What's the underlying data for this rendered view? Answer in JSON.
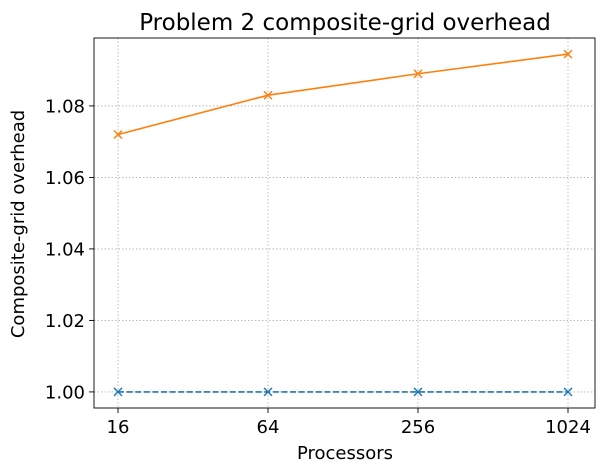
{
  "chart_data": {
    "type": "line",
    "title": "Problem 2 composite-grid overhead",
    "xlabel": "Processors",
    "ylabel": "Composite-grid overhead",
    "x_scale": "log2",
    "x": [
      16,
      64,
      256,
      1024
    ],
    "x_tick_labels": [
      "16",
      "64",
      "256",
      "1024"
    ],
    "y_ticks": [
      1.0,
      1.02,
      1.04,
      1.06,
      1.08
    ],
    "y_tick_labels": [
      "1.00",
      "1.02",
      "1.04",
      "1.06",
      "1.08"
    ],
    "ylim": [
      0.9955,
      1.099
    ],
    "grid": true,
    "series": [
      {
        "values": [
          1.0,
          1.0,
          1.0,
          1.0
        ],
        "color": "#1f77b4",
        "linestyle": "dashed",
        "marker": "x"
      },
      {
        "values": [
          1.072,
          1.083,
          1.089,
          1.0945
        ],
        "color": "#ff7f0e",
        "linestyle": "solid",
        "marker": "x"
      }
    ]
  }
}
